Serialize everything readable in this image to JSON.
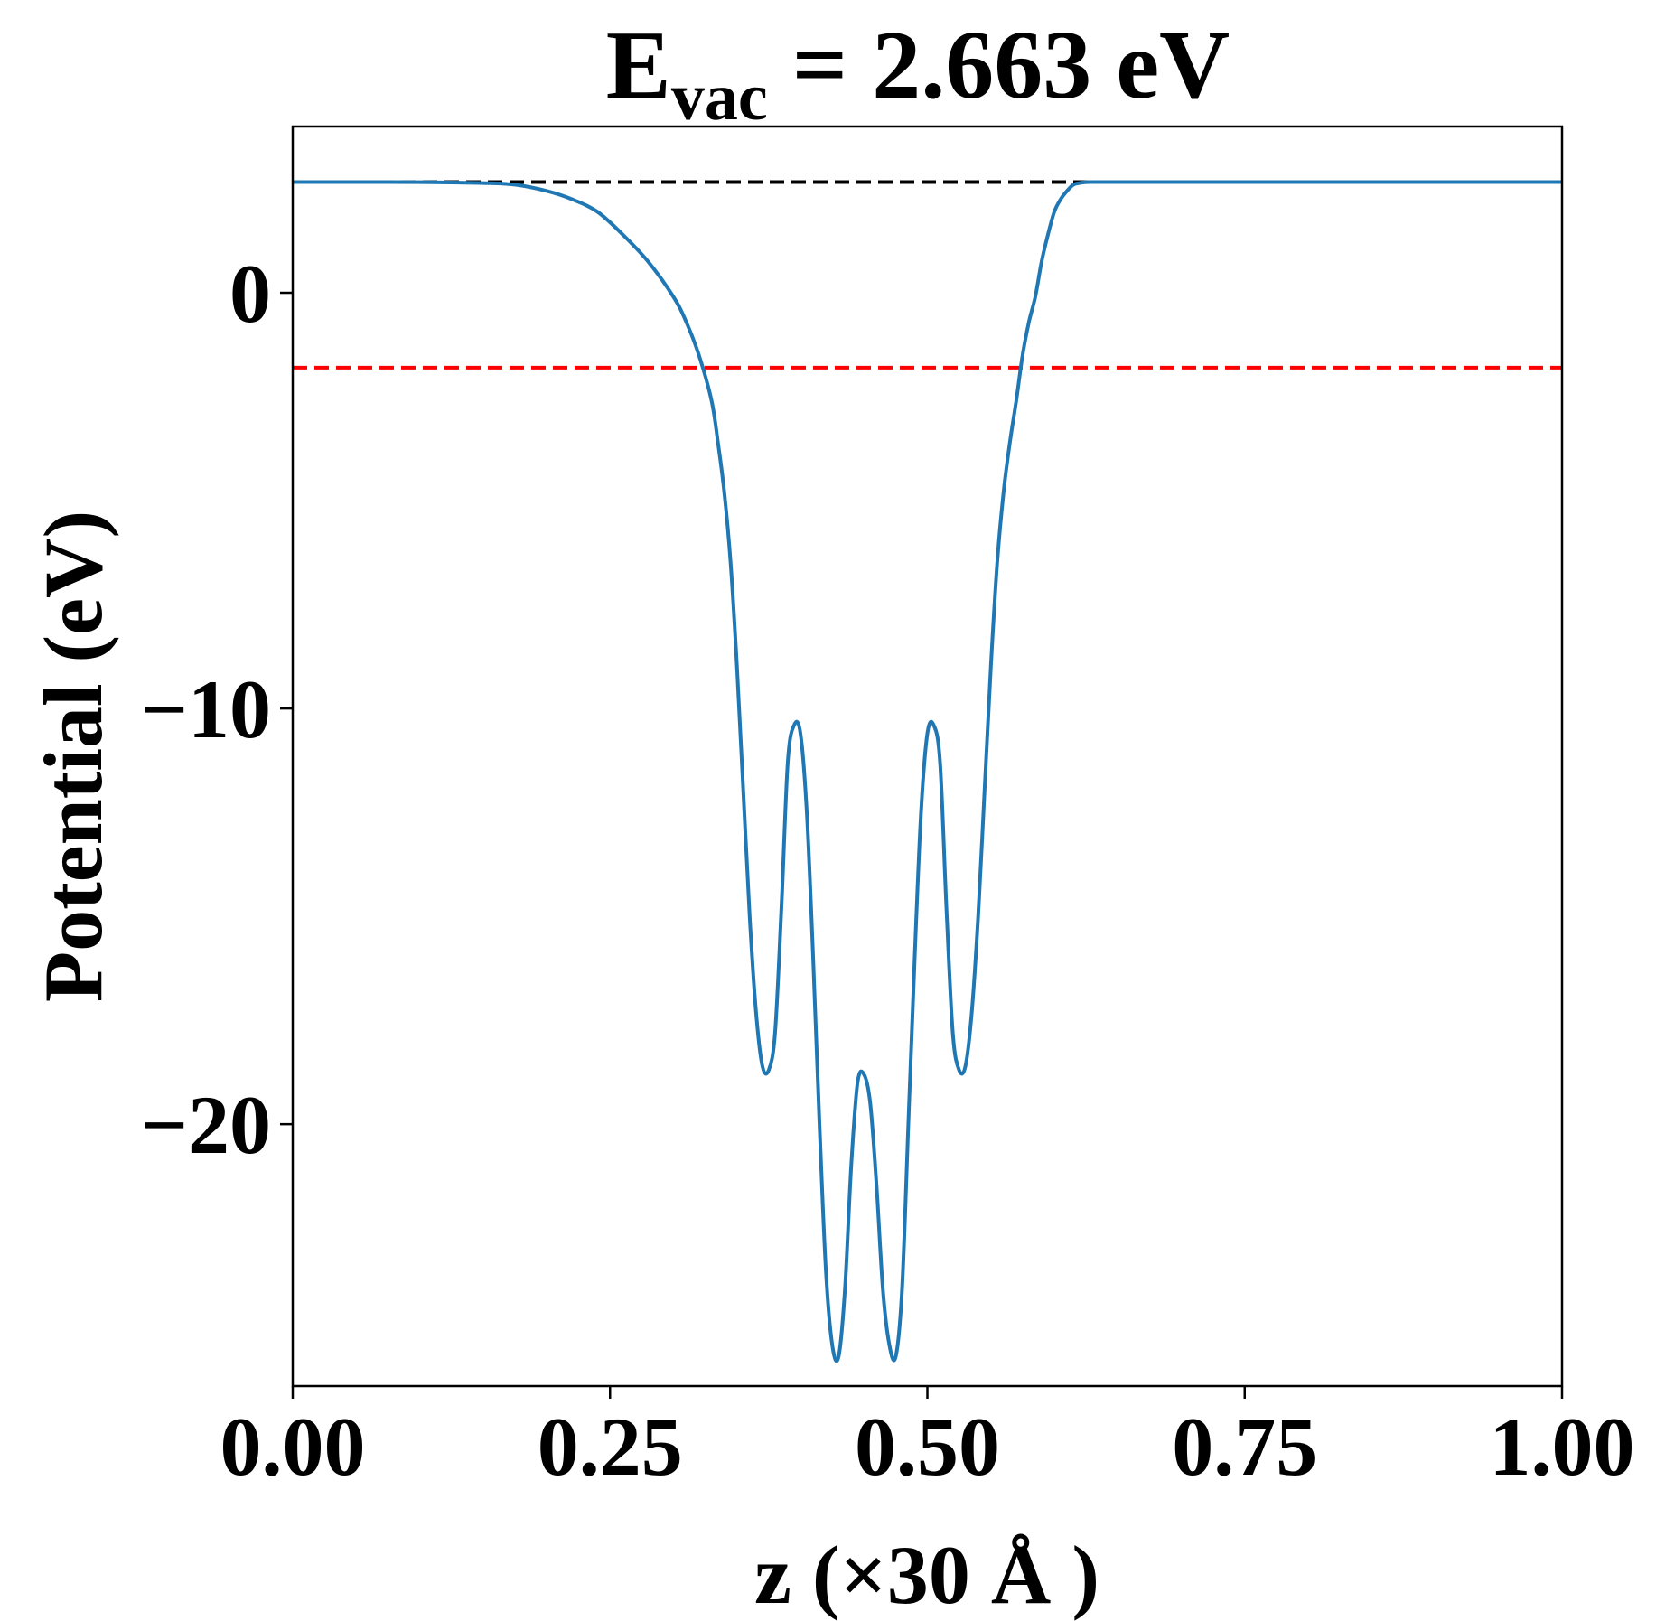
{
  "chart_data": {
    "type": "line",
    "title": {
      "main": "E",
      "subscript": "vac",
      "rest": " = 2.663 eV"
    },
    "xlabel": "z (×30 Å )",
    "ylabel": "Potential (eV)",
    "xlim": [
      0.0,
      1.0
    ],
    "ylim": [
      -26.3,
      4.0
    ],
    "xticks": [
      {
        "value": 0.0,
        "label": "0.00"
      },
      {
        "value": 0.25,
        "label": "0.25"
      },
      {
        "value": 0.5,
        "label": "0.50"
      },
      {
        "value": 0.75,
        "label": "0.75"
      },
      {
        "value": 1.0,
        "label": "1.00"
      }
    ],
    "yticks": [
      {
        "value": 0,
        "label": "0"
      },
      {
        "value": -10,
        "label": "−10"
      },
      {
        "value": -20,
        "label": "−20"
      }
    ],
    "grid": false,
    "reference_lines": [
      {
        "y": 2.663,
        "color": "#000000",
        "style": "dashed"
      },
      {
        "y": -1.8,
        "color": "#ff0000",
        "style": "dashed"
      }
    ],
    "series": [
      {
        "color": "#1f77b4",
        "x": [
          0.0,
          0.05,
          0.1,
          0.15,
          0.175,
          0.2,
          0.22,
          0.24,
          0.26,
          0.28,
          0.3,
          0.31,
          0.32,
          0.33,
          0.335,
          0.34,
          0.345,
          0.35,
          0.355,
          0.36,
          0.365,
          0.37,
          0.375,
          0.38,
          0.385,
          0.39,
          0.395,
          0.4,
          0.405,
          0.41,
          0.415,
          0.42,
          0.425,
          0.43,
          0.435,
          0.44,
          0.445,
          0.45,
          0.455,
          0.46,
          0.465,
          0.47,
          0.475,
          0.48,
          0.485,
          0.49,
          0.495,
          0.5,
          0.505,
          0.51,
          0.515,
          0.52,
          0.525,
          0.53,
          0.535,
          0.54,
          0.545,
          0.55,
          0.555,
          0.56,
          0.565,
          0.57,
          0.575,
          0.58,
          0.585,
          0.59,
          0.595,
          0.6,
          0.605,
          0.61,
          0.615,
          0.62,
          0.625,
          0.63,
          0.635,
          0.64,
          0.65,
          0.67,
          0.69,
          0.71,
          0.73,
          0.75,
          0.775,
          0.8,
          0.85,
          0.9,
          0.95,
          1.0
        ],
        "y": [
          2.663,
          2.663,
          2.66,
          2.64,
          2.6,
          2.45,
          2.25,
          1.95,
          1.4,
          0.75,
          -0.1,
          -0.7,
          -1.5,
          -2.6,
          -3.6,
          -4.8,
          -6.5,
          -9.0,
          -12.0,
          -15.0,
          -17.3,
          -18.6,
          -18.7,
          -17.8,
          -14.8,
          -11.3,
          -10.4,
          -10.6,
          -12.5,
          -16.0,
          -20.0,
          -23.5,
          -25.3,
          -25.6,
          -24.0,
          -21.0,
          -19.0,
          -18.8,
          -19.5,
          -21.5,
          -24.0,
          -25.3,
          -25.6,
          -24.0,
          -20.0,
          -16.0,
          -12.5,
          -10.6,
          -10.4,
          -11.3,
          -14.8,
          -17.8,
          -18.7,
          -18.6,
          -17.3,
          -15.0,
          -12.0,
          -9.0,
          -6.5,
          -4.8,
          -3.6,
          -2.6,
          -1.5,
          -0.7,
          -0.1,
          0.75,
          1.4,
          1.95,
          2.25,
          2.45,
          2.6,
          2.64,
          2.66,
          2.663,
          2.663,
          2.663,
          2.663,
          2.663,
          2.663,
          2.663,
          2.663,
          2.663,
          2.663,
          2.663,
          2.663,
          2.663,
          2.663,
          2.663
        ]
      }
    ]
  }
}
